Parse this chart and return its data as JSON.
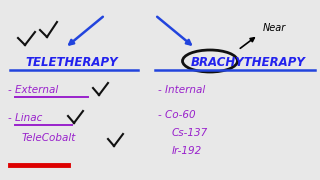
{
  "bg_color": "#e8e8e8",
  "title_left": "TELETHERAPY",
  "title_right": "BRACHYTHERAPY",
  "title_color": "#2222ee",
  "near_text": "Near",
  "near_color": "#000000",
  "item_color": "#9922cc",
  "arrow_color": "#2244dd",
  "underline_color": "#2244dd",
  "red_line_color": "#dd0000",
  "check_color": "#111111",
  "circle_color": "#111111"
}
